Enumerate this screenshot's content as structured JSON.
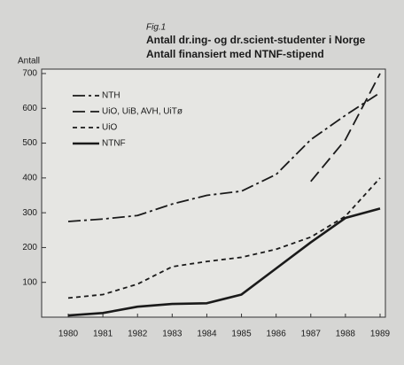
{
  "chart_data": {
    "type": "line",
    "label": "Fig.1",
    "title": "Antall dr.ing- og dr.scient-studenter i Norge",
    "subtitle": "Antall finansiert med NTNF-stipend",
    "y_label": "Antall",
    "categories": [
      "1980",
      "1981",
      "1982",
      "1983",
      "1984",
      "1985",
      "1986",
      "1987",
      "1988",
      "1989"
    ],
    "series": [
      {
        "name": "NTH",
        "color": "#1a1a1a",
        "dash": "14 4 3 4",
        "width": 1.8,
        "values": [
          275,
          282,
          292,
          325,
          350,
          362,
          410,
          510,
          580,
          645
        ]
      },
      {
        "name": "UiO, UiB, AVH, UiTø",
        "color": "#1a1a1a",
        "dash": "14 6",
        "width": 1.8,
        "values": [
          null,
          null,
          null,
          null,
          null,
          null,
          null,
          390,
          510,
          700
        ]
      },
      {
        "name": "UiO",
        "color": "#1a1a1a",
        "dash": "5 4",
        "width": 1.8,
        "values": [
          55,
          65,
          95,
          145,
          160,
          172,
          195,
          230,
          290,
          400
        ]
      },
      {
        "name": "NTNF",
        "color": "#1a1a1a",
        "dash": "none",
        "width": 2.6,
        "values": [
          5,
          12,
          30,
          38,
          40,
          65,
          140,
          215,
          285,
          312
        ]
      }
    ],
    "ylim": [
      0,
      700
    ],
    "yticks": [
      100,
      200,
      300,
      400,
      500,
      600,
      700
    ],
    "legend": "upper left"
  }
}
